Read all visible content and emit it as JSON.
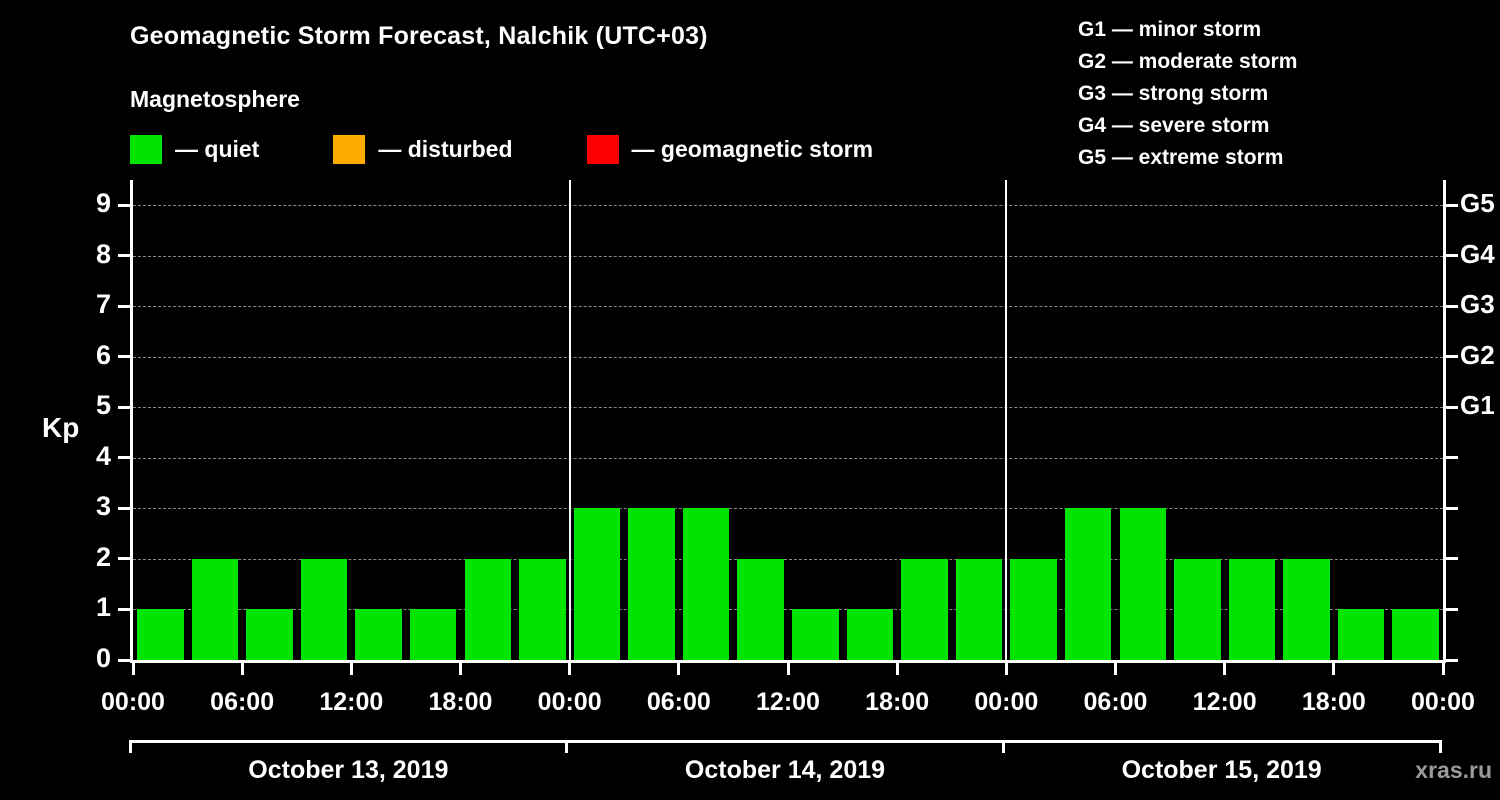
{
  "title": "Geomagnetic Storm Forecast, Nalchik (UTC+03)",
  "subtitle": "Magnetosphere",
  "watermark": "xras.ru",
  "colors": {
    "background": "#000000",
    "text": "#ffffff",
    "grid": "#8a8a8a",
    "quiet": "#00e400",
    "disturbed": "#ffaa00",
    "storm": "#ff0000"
  },
  "legend": [
    {
      "key": "quiet",
      "label": "— quiet",
      "color": "#00e400"
    },
    {
      "key": "disturbed",
      "label": "— disturbed",
      "color": "#ffaa00"
    },
    {
      "key": "storm",
      "label": "— geomagnetic storm",
      "color": "#ff0000"
    }
  ],
  "g_legend": [
    "G1 — minor storm",
    "G2 — moderate storm",
    "G3 — strong storm",
    "G4 — severe storm",
    "G5 — extreme storm"
  ],
  "chart_data": {
    "type": "bar",
    "title": "Geomagnetic Storm Forecast, Nalchik (UTC+03)",
    "ylabel": "Kp",
    "xlabel": "",
    "ylim": [
      0,
      9.5
    ],
    "grid": true,
    "legend_position": "top",
    "bar_color": "#00e400",
    "interval_hours": 3,
    "y_ticks": [
      0,
      1,
      2,
      3,
      4,
      5,
      6,
      7,
      8,
      9
    ],
    "right_axis_labels": [
      {
        "kp": 5,
        "label": "G1"
      },
      {
        "kp": 6,
        "label": "G2"
      },
      {
        "kp": 7,
        "label": "G3"
      },
      {
        "kp": 8,
        "label": "G4"
      },
      {
        "kp": 9,
        "label": "G5"
      }
    ],
    "x_tick_labels": [
      "00:00",
      "06:00",
      "12:00",
      "18:00",
      "00:00",
      "06:00",
      "12:00",
      "18:00",
      "00:00",
      "06:00",
      "12:00",
      "18:00",
      "00:00"
    ],
    "days": [
      {
        "date": "October 13, 2019",
        "kp_values": [
          1,
          2,
          1,
          2,
          1,
          1,
          2,
          2
        ]
      },
      {
        "date": "October 14, 2019",
        "kp_values": [
          3,
          3,
          3,
          2,
          1,
          1,
          2,
          2
        ]
      },
      {
        "date": "October 15, 2019",
        "kp_values": [
          2,
          3,
          3,
          2,
          2,
          2,
          1,
          1
        ]
      }
    ]
  }
}
